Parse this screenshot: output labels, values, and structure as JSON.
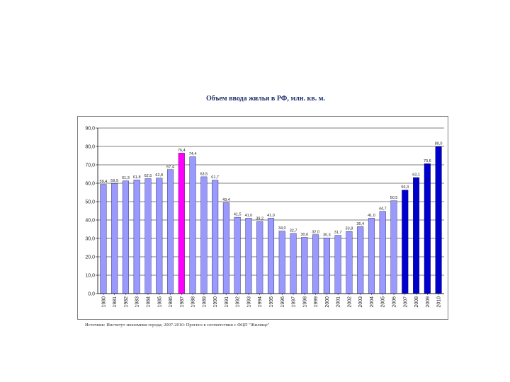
{
  "chart_data": {
    "type": "bar",
    "title": "Объем ввода жилья в РФ, млн. кв. м.",
    "xlabel": "",
    "ylabel": "",
    "ylim": [
      0,
      90
    ],
    "yticks": [
      "0,0",
      "10,0",
      "20,0",
      "30,0",
      "40,0",
      "50,0",
      "60,0",
      "70,0",
      "80,0",
      "90,0"
    ],
    "grid": true,
    "categories": [
      "1980",
      "1981",
      "1982",
      "1983",
      "1984",
      "1985",
      "1986",
      "1987",
      "1988",
      "1989",
      "1990",
      "1991",
      "1992",
      "1993",
      "1994",
      "1995",
      "1996",
      "1997",
      "1998",
      "1999",
      "2000",
      "2001",
      "2002",
      "2003",
      "2004",
      "2005",
      "2006",
      "2007",
      "2008",
      "2009",
      "2010"
    ],
    "values": [
      59.4,
      59.9,
      61.3,
      61.8,
      62.5,
      62.8,
      67.4,
      76.4,
      74.4,
      63.5,
      61.7,
      49.4,
      41.5,
      41.0,
      39.2,
      41.0,
      34.0,
      32.7,
      30.6,
      32.0,
      30.3,
      31.7,
      33.8,
      36.4,
      41.0,
      44.7,
      50.5,
      56.3,
      63.1,
      70.6,
      80.0
    ],
    "labels": [
      "59,4",
      "59,9",
      "61,3",
      "61,8",
      "62,5",
      "62,8",
      "67,4",
      "76,4",
      "74,4",
      "63,5",
      "61,7",
      "49,4",
      "41,5",
      "41,0",
      "39,2",
      "41,0",
      "34,0",
      "32,7",
      "30,6",
      "32,0",
      "30,3",
      "31,7",
      "33,8",
      "36,4",
      "41,0",
      "44,7",
      "50,5",
      "56,3",
      "63,1",
      "70,6",
      "80,0"
    ],
    "bar_kinds": [
      "normal",
      "normal",
      "normal",
      "normal",
      "normal",
      "normal",
      "normal",
      "highlight",
      "normal",
      "normal",
      "normal",
      "normal",
      "normal",
      "normal",
      "normal",
      "normal",
      "normal",
      "normal",
      "normal",
      "normal",
      "normal",
      "normal",
      "normal",
      "normal",
      "normal",
      "normal",
      "normal",
      "forecast",
      "forecast",
      "forecast",
      "forecast"
    ],
    "colors": {
      "normal": "#9999ff",
      "highlight": "#ff00ff",
      "forecast": "#0000cc",
      "bar_edge": "#1a1a40",
      "grid": "#000000"
    }
  },
  "source": "Источник: Институт экономики города; 2007-2010: Прогноз в соответствии с ФЦП \"Жилище\""
}
